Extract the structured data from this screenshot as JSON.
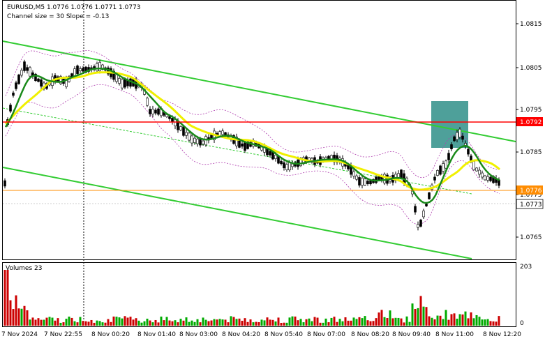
{
  "header": {
    "symbol_line": "EURUSD,M5  1.0776 1.0776 1.0771 1.0773",
    "channel_line": "Channel size = 30 Slope = -0.13"
  },
  "volume_panel": {
    "label": "Volumes 23",
    "scale_max": "203",
    "scale_min": "0"
  },
  "price_axis": {
    "ticks": [
      "1.0815",
      "1.0805",
      "1.0795",
      "1.0785",
      "1.0775",
      "1.0765"
    ],
    "level_red_label": "1.0792",
    "level_orange_label": "1.0776",
    "current_label": "1.0773"
  },
  "time_axis": {
    "ticks": [
      "7 Nov 2024",
      "7 Nov 22:55",
      "8 Nov 00:20",
      "8 Nov 01:40",
      "8 Nov 03:00",
      "8 Nov 04:20",
      "8 Nov 05:40",
      "8 Nov 07:00",
      "8 Nov 08:20",
      "8 Nov 09:40",
      "8 Nov 11:00",
      "8 Nov 12:20"
    ]
  },
  "colors": {
    "channel": "#33cc33",
    "resistance": "#ff0000",
    "support_level": "#ff8c00",
    "ma_fast": "#1a8a1a",
    "ma_slow": "#f0f000",
    "bands": "#b040b0",
    "volume_up": "#00aa00",
    "volume_down": "#cc0000",
    "highlight_box": "#2f8f88"
  },
  "chart_data": {
    "type": "candlestick",
    "price_range": [
      1.0759,
      1.0825
    ],
    "levels": [
      {
        "price": 1.0792,
        "label": "1.0792",
        "color": "red"
      },
      {
        "price": 1.0776,
        "label": "1.0776",
        "color": "orange"
      }
    ],
    "current_price": 1.0773
  }
}
